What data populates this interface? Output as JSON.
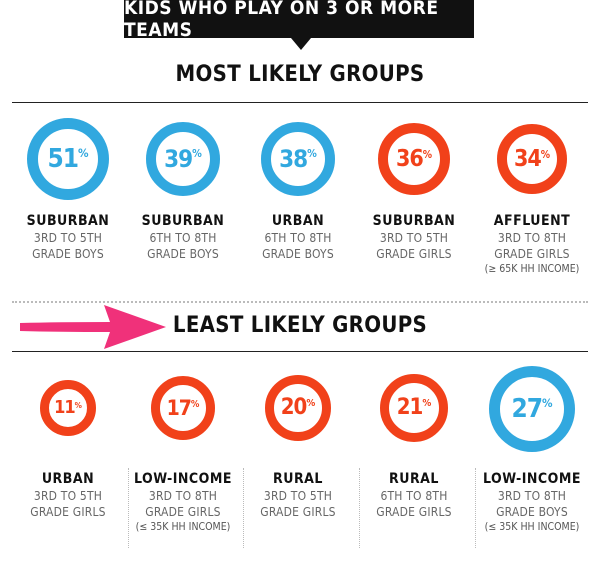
{
  "banner": {
    "title": "KIDS WHO PLAY ON 3 OR MORE TEAMS"
  },
  "most": {
    "title": "MOST LIKELY GROUPS",
    "cards": [
      {
        "value": "51",
        "unit": "%",
        "color": "blue",
        "line1": "SUBURBAN",
        "line2": "3RD TO 5TH",
        "line3": "GRADE BOYS",
        "line4": ""
      },
      {
        "value": "39",
        "unit": "%",
        "color": "blue",
        "line1": "SUBURBAN",
        "line2": "6TH TO 8TH",
        "line3": "GRADE BOYS",
        "line4": ""
      },
      {
        "value": "38",
        "unit": "%",
        "color": "blue",
        "line1": "URBAN",
        "line2": "6TH TO 8TH",
        "line3": "GRADE BOYS",
        "line4": ""
      },
      {
        "value": "36",
        "unit": "%",
        "color": "orange",
        "line1": "SUBURBAN",
        "line2": "3RD TO 5TH",
        "line3": "GRADE GIRLS",
        "line4": ""
      },
      {
        "value": "34",
        "unit": "%",
        "color": "orange",
        "line1": "AFFLUENT",
        "line2": "3RD TO 8TH",
        "line3": "GRADE GIRLS",
        "line4": "(≥ 65K HH INCOME)"
      }
    ]
  },
  "least": {
    "title": "LEAST LIKELY GROUPS",
    "cards": [
      {
        "value": "11",
        "unit": "%",
        "color": "orange",
        "line1": "URBAN",
        "line2": "3RD TO 5TH",
        "line3": "GRADE GIRLS",
        "line4": ""
      },
      {
        "value": "17",
        "unit": "%",
        "color": "orange",
        "line1": "LOW-INCOME",
        "line2": "3RD TO 8TH",
        "line3": "GRADE GIRLS",
        "line4": "(≤ 35K HH INCOME)"
      },
      {
        "value": "20",
        "unit": "%",
        "color": "orange",
        "line1": "RURAL",
        "line2": "3RD TO 5TH",
        "line3": "GRADE GIRLS",
        "line4": ""
      },
      {
        "value": "21",
        "unit": "%",
        "color": "orange",
        "line1": "RURAL",
        "line2": "6TH TO 8TH",
        "line3": "GRADE GIRLS",
        "line4": ""
      },
      {
        "value": "27",
        "unit": "%",
        "color": "blue",
        "line1": "LOW-INCOME",
        "line2": "3RD TO 8TH",
        "line3": "GRADE BOYS",
        "line4": "(≤ 35K HH INCOME)"
      }
    ]
  },
  "colors": {
    "blue": "#31a8df",
    "orange": "#f1411a",
    "arrow": "#f0317a"
  }
}
